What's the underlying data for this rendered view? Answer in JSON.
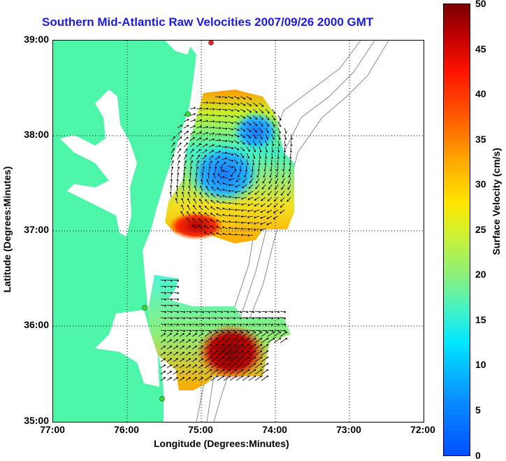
{
  "title": "Southern Mid-Atlantic Raw Velocities 2007/09/26 2000 GMT",
  "xlabel": "Longitude (Degrees:Minutes)",
  "ylabel": "Latitude (Degrees:Minutes)",
  "colorbar_label": "Surface Velocity (cm/s)",
  "yticks": [
    "39:00",
    "38:00",
    "37:00",
    "36:00",
    "35:00"
  ],
  "xticks": [
    "77:00",
    "76:00",
    "75:00",
    "74:00",
    "73:00",
    "72:00"
  ],
  "colorbar_ticks": [
    "50",
    "45",
    "40",
    "35",
    "30",
    "25",
    "20",
    "15",
    "10",
    "5",
    "0"
  ],
  "colors": {
    "land": "#4df5a8",
    "bathymetry": "#8c8c8c",
    "site_marker": "#33dd33",
    "title": "#1a1ae6"
  },
  "chart_data": {
    "type": "heatmap",
    "title": "Southern Mid-Atlantic Raw Velocities 2007/09/26 2000 GMT",
    "xlabel": "Longitude (Degrees:Minutes)",
    "ylabel": "Latitude (Degrees:Minutes)",
    "xlim": [
      -77,
      -72
    ],
    "ylim": [
      35,
      39
    ],
    "colorbar": {
      "label": "Surface Velocity (cm/s)",
      "range": [
        0,
        50
      ]
    },
    "grid": true
  }
}
